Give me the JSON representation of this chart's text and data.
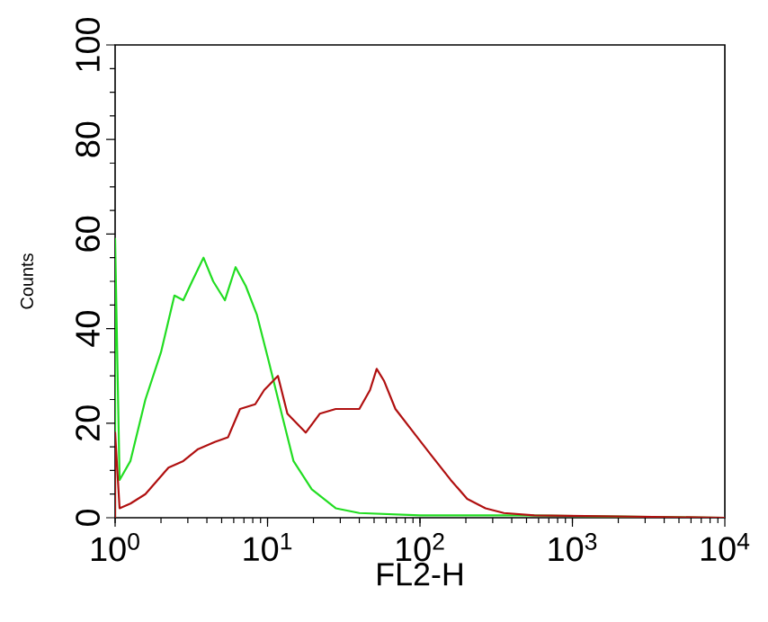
{
  "chart_data": {
    "type": "line",
    "xlabel": "FL2-H",
    "ylabel": "Counts",
    "log": "x",
    "grid": false,
    "marker": "none",
    "line_style": "solid",
    "xlim": [
      1,
      10000
    ],
    "ylim": [
      0,
      100
    ],
    "xticks": [
      {
        "value": 1,
        "label": "10$^{0}$"
      },
      {
        "value": 10,
        "label": "10$^{1}$"
      },
      {
        "value": 100,
        "label": "10$^{2}$"
      },
      {
        "value": 1000,
        "label": "10$^{3}$"
      },
      {
        "value": 10000,
        "label": "10$^{4}$"
      }
    ],
    "yticks": [
      0,
      20,
      40,
      60,
      80,
      100
    ],
    "series": [
      {
        "color": "#22dd22",
        "x": [
          1,
          1,
          1.07,
          1.26,
          1.58,
          2.0,
          2.45,
          2.8,
          3.2,
          3.8,
          4.4,
          5.25,
          6.17,
          7.2,
          8.5,
          10.2,
          12.6,
          14.8,
          19.5,
          28,
          40,
          100,
          447,
          10000
        ],
        "values": [
          0,
          59,
          8,
          12,
          25,
          35,
          47,
          46,
          50,
          55,
          50,
          46,
          53,
          49,
          43,
          33,
          21,
          12,
          6,
          2,
          1,
          0.5,
          0.5,
          0
        ]
      },
      {
        "color": "#b01010",
        "x": [
          1,
          1,
          1.07,
          1.26,
          1.58,
          2.24,
          2.8,
          3.5,
          4.5,
          5.5,
          6.6,
          8.3,
          9.5,
          11.7,
          13.5,
          17.8,
          22,
          28,
          40,
          47,
          52,
          58,
          69,
          91,
          120,
          159,
          204,
          269,
          355,
          562,
          10000
        ],
        "values": [
          0,
          18,
          2,
          3,
          5,
          10.6,
          12,
          14.5,
          16,
          17,
          23,
          24,
          27,
          30,
          22,
          18,
          22,
          23,
          23,
          27,
          31.5,
          29,
          23,
          18,
          13,
          8,
          4,
          2,
          1,
          0.5,
          0
        ]
      }
    ]
  }
}
